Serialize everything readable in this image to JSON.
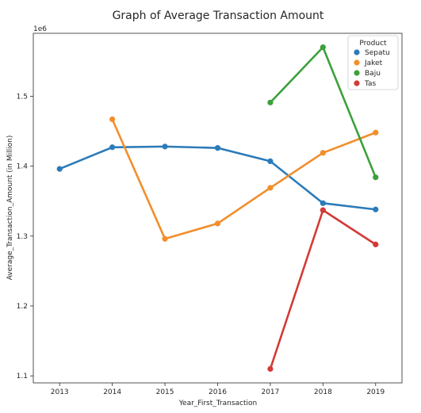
{
  "chart_data": {
    "type": "line",
    "title": "Graph of Average Transaction Amount",
    "xlabel": "Year_First_Transaction",
    "ylabel": "Average_Transaction_Amount (in Million)",
    "y_offset_label": "1e6",
    "categories": [
      "2013",
      "2014",
      "2015",
      "2016",
      "2017",
      "2018",
      "2019"
    ],
    "ylim": [
      1090000,
      1590000
    ],
    "yticks": [
      1100000,
      1200000,
      1300000,
      1400000,
      1500000
    ],
    "ytick_labels": [
      "1.1",
      "1.2",
      "1.3",
      "1.4",
      "1.5"
    ],
    "grid": false,
    "legend": {
      "title": "Product",
      "placement": "top-right"
    },
    "series": [
      {
        "name": "Sepatu",
        "color": "#2b7bb9",
        "values": [
          1396000,
          1427000,
          1428000,
          1426000,
          1407000,
          1347000,
          1338000
        ]
      },
      {
        "name": "Jaket",
        "color": "#f28e2b",
        "values": [
          null,
          1467000,
          1296000,
          1318000,
          1369000,
          1419000,
          1448000
        ]
      },
      {
        "name": "Baju",
        "color": "#3ca03c",
        "values": [
          null,
          null,
          null,
          null,
          1491000,
          1570000,
          1384000
        ]
      },
      {
        "name": "Tas",
        "color": "#d33a35",
        "values": [
          null,
          null,
          null,
          null,
          1110000,
          1337000,
          1288000
        ]
      }
    ]
  }
}
